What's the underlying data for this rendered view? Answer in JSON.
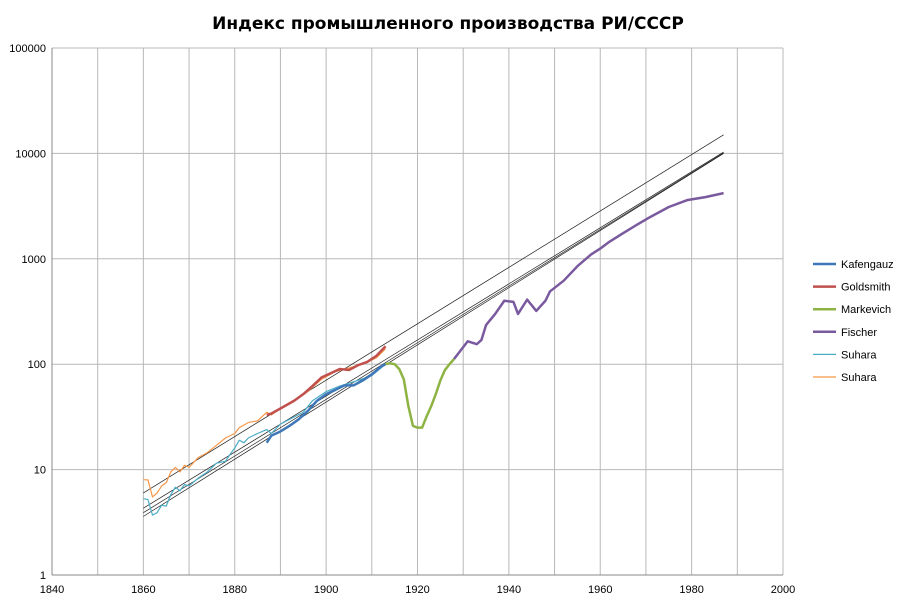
{
  "chart_data": {
    "type": "line",
    "title": "Индекс промышленного производства РИ/СССР",
    "xlabel": "",
    "ylabel": "",
    "xlim": [
      1840,
      2000
    ],
    "ylim": [
      1,
      100000
    ],
    "yscale": "log",
    "grid": true,
    "legend_position": "right",
    "x_ticks": [
      "1840",
      "1860",
      "1880",
      "1900",
      "1920",
      "1940",
      "1960",
      "1980",
      "2000"
    ],
    "y_ticks": [
      "1",
      "10",
      "100",
      "1000",
      "10000",
      "100000"
    ],
    "series": [
      {
        "name": "Kafengauz",
        "color": "#3f78b8",
        "width": 2.5,
        "x": [
          1887,
          1888,
          1890,
          1892,
          1894,
          1896,
          1898,
          1900,
          1902,
          1904,
          1906,
          1908,
          1910,
          1912,
          1913
        ],
        "y": [
          18,
          21,
          23,
          26,
          30,
          36,
          45,
          52,
          57,
          63,
          63,
          70,
          80,
          95,
          100
        ]
      },
      {
        "name": "Goldsmith",
        "color": "#c0504d",
        "width": 2.5,
        "x": [
          1887,
          1888,
          1890,
          1893,
          1895,
          1897,
          1899,
          1901,
          1903,
          1905,
          1907,
          1909,
          1911,
          1913
        ],
        "y": [
          33,
          34,
          38,
          45,
          52,
          62,
          75,
          82,
          90,
          88,
          98,
          105,
          120,
          148
        ]
      },
      {
        "name": "Markevich",
        "color": "#8db443",
        "width": 2.5,
        "x": [
          1913,
          1914,
          1915,
          1916,
          1917,
          1918,
          1919,
          1920,
          1921,
          1922,
          1923,
          1924,
          1925,
          1926,
          1927,
          1928
        ],
        "y": [
          100,
          102,
          100,
          90,
          72,
          40,
          26,
          25,
          25,
          32,
          40,
          52,
          70,
          88,
          100,
          112
        ]
      },
      {
        "name": "Fischer",
        "color": "#7a5a9e",
        "width": 2.5,
        "x": [
          1928,
          1931,
          1933,
          1934,
          1935,
          1937,
          1939,
          1941,
          1942,
          1944,
          1946,
          1948,
          1949,
          1952,
          1955,
          1958,
          1960,
          1962,
          1965,
          1968,
          1971,
          1975,
          1979,
          1983,
          1987
        ],
        "y": [
          112,
          165,
          155,
          170,
          235,
          300,
          400,
          390,
          300,
          410,
          320,
          400,
          490,
          620,
          850,
          1100,
          1250,
          1450,
          1750,
          2100,
          2500,
          3100,
          3600,
          3850,
          4200
        ]
      },
      {
        "name": "Suhara",
        "color": "#4bacc6",
        "width": 1.2,
        "x": [
          1860,
          1861,
          1862,
          1863,
          1864,
          1865,
          1866,
          1867,
          1868,
          1869,
          1870,
          1872,
          1874,
          1876,
          1878,
          1879,
          1880,
          1881,
          1882,
          1883,
          1885,
          1887,
          1888,
          1890,
          1892,
          1895,
          1897,
          1900,
          1903,
          1906,
          1910,
          1913
        ],
        "y": [
          5.3,
          5.2,
          3.7,
          3.9,
          4.6,
          4.5,
          5.8,
          6.8,
          6.3,
          7.2,
          7,
          8.3,
          9.5,
          11.5,
          12,
          14,
          16,
          19,
          18,
          20,
          22,
          24,
          22,
          27,
          30,
          35,
          45,
          55,
          62,
          68,
          78,
          100
        ]
      },
      {
        "name": "Suhara",
        "color": "#f79646",
        "width": 1.2,
        "x": [
          1860,
          1861,
          1862,
          1863,
          1864,
          1865,
          1866,
          1867,
          1868,
          1869,
          1870,
          1872,
          1874,
          1876,
          1878,
          1880,
          1881,
          1883,
          1885,
          1887,
          1888,
          1890,
          1893,
          1896,
          1899,
          1902,
          1905,
          1908,
          1911,
          1913
        ],
        "y": [
          8,
          8,
          5.5,
          6,
          7,
          7.5,
          9.5,
          10.5,
          9.5,
          11,
          10.5,
          13,
          14.5,
          17,
          20,
          22,
          25,
          28,
          29,
          35,
          33,
          38,
          45,
          55,
          72,
          85,
          92,
          100,
          115,
          140
        ]
      }
    ],
    "trendlines": [
      {
        "x": [
          1860,
          1987
        ],
        "y": [
          6,
          15000
        ]
      },
      {
        "x": [
          1860,
          1987
        ],
        "y": [
          4.3,
          10300
        ]
      },
      {
        "x": [
          1860,
          1987
        ],
        "y": [
          3.9,
          10100
        ]
      },
      {
        "x": [
          1860,
          1987
        ],
        "y": [
          3.6,
          10000
        ]
      }
    ]
  }
}
